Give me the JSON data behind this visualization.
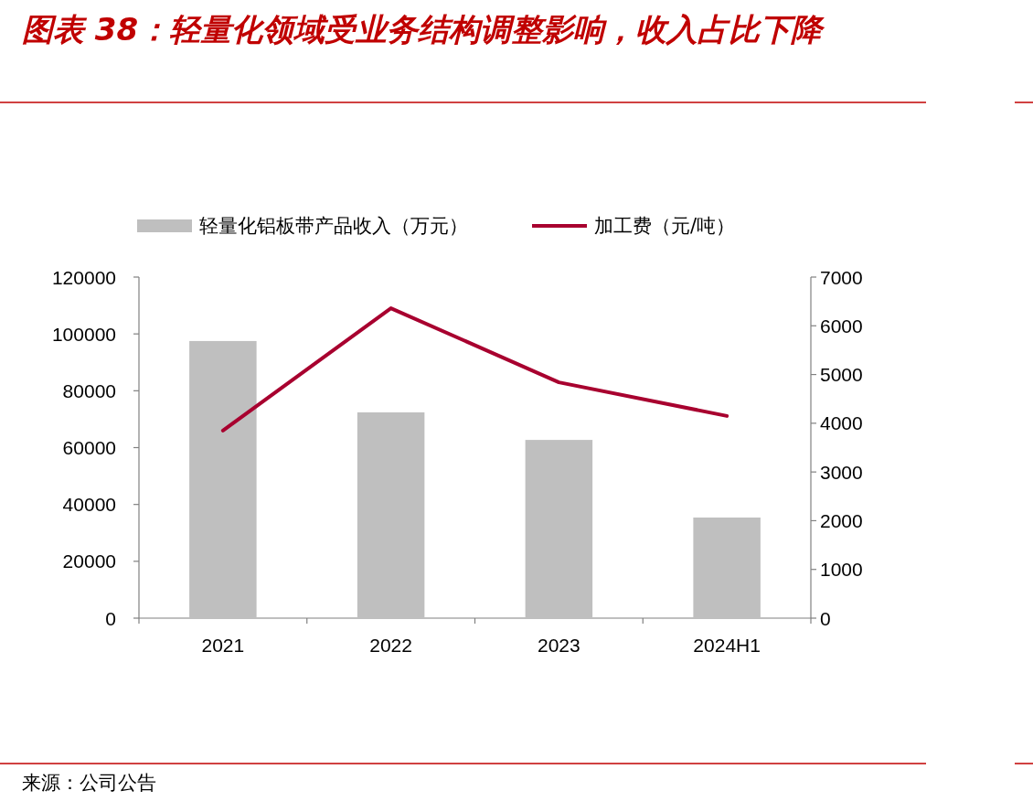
{
  "chart_data": {
    "type": "bar",
    "title": "图表 38：轻量化领域受业务结构调整影响，收入占比下降",
    "categories": [
      "2021",
      "2022",
      "2023",
      "2024H1"
    ],
    "series": [
      {
        "name": "轻量化铝板带产品收入（万元）",
        "color": "#bfbfbf",
        "values": [
          97500,
          72400,
          62700,
          35400
        ]
      },
      {
        "name": "加工费（元/吨）",
        "type": "line",
        "axis": "y2",
        "color": "#a8002f",
        "values": [
          3850,
          6360,
          4840,
          4150
        ]
      }
    ],
    "ylim": [
      0,
      120000
    ],
    "yticks": [
      0,
      20000,
      40000,
      60000,
      80000,
      100000,
      120000
    ],
    "y2lim": [
      0,
      7000
    ],
    "y2ticks": [
      0,
      1000,
      2000,
      3000,
      4000,
      5000,
      6000,
      7000
    ],
    "legend": "top",
    "annotations": [
      "来源：公司公告"
    ]
  }
}
